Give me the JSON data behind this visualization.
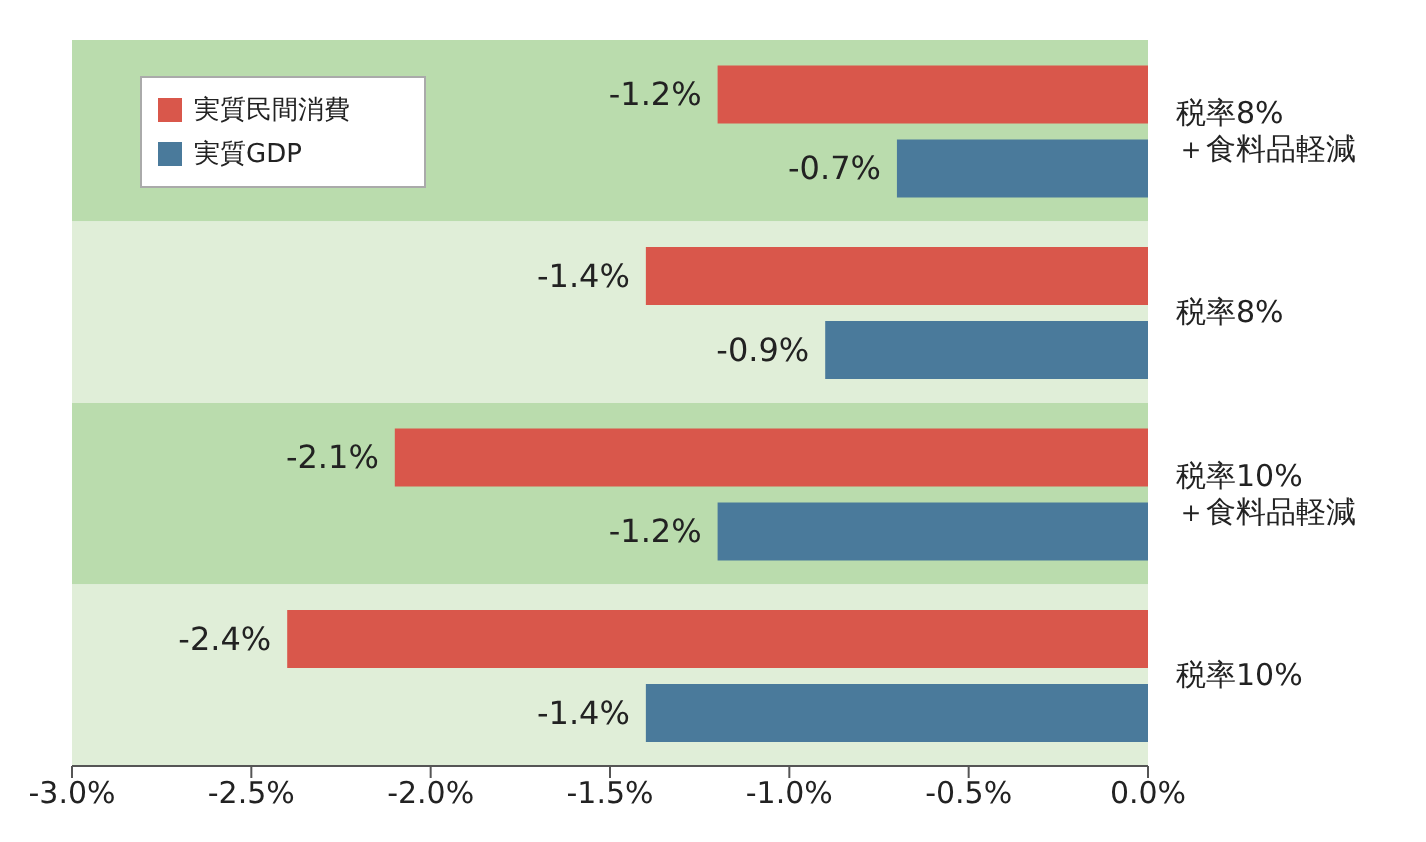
{
  "chart_data": {
    "type": "bar",
    "orientation": "horizontal",
    "categories": [
      "税率8%\n＋食料品軽減",
      "税率8%",
      "税率10%\n＋食料品軽減",
      "税率10%"
    ],
    "series": [
      {
        "name": "実質民間消費",
        "color": "#d9574b",
        "values": [
          -1.2,
          -1.4,
          -2.1,
          -2.4
        ],
        "value_labels": [
          "-1.2%",
          "-1.4%",
          "-2.1%",
          "-2.4%"
        ]
      },
      {
        "name": "実質GDP",
        "color": "#4a7a9b",
        "values": [
          -0.7,
          -0.9,
          -1.2,
          -1.4
        ],
        "value_labels": [
          "-0.7%",
          "-0.9%",
          "-1.2%",
          "-1.4%"
        ]
      }
    ],
    "xlim": [
      -3,
      0
    ],
    "xticks": [
      {
        "value": -3,
        "label": "-3.0%"
      },
      {
        "value": -2.5,
        "label": "-2.5%"
      },
      {
        "value": -2,
        "label": "-2.0%"
      },
      {
        "value": -1.5,
        "label": "-1.5%"
      },
      {
        "value": -1,
        "label": "-1.0%"
      },
      {
        "value": -0.5,
        "label": "-0.5%"
      },
      {
        "value": 0,
        "label": "0.0%"
      }
    ],
    "bands": [
      {
        "axis": "y",
        "from": "税率8%\n＋食料品軽減",
        "to": "税率8%\n＋食料品軽減",
        "color": "#badcad"
      },
      {
        "axis": "y",
        "from": "税率8%",
        "to": "税率8%",
        "color": "#e0eed8"
      },
      {
        "axis": "y",
        "from": "税率10%\n＋食料品軽減",
        "to": "税率10%\n＋食料品軽減",
        "color": "#badcad"
      },
      {
        "axis": "y",
        "from": "税率10%",
        "to": "税率10%",
        "color": "#e0eed8"
      }
    ],
    "grid": false,
    "legend": "top left"
  }
}
